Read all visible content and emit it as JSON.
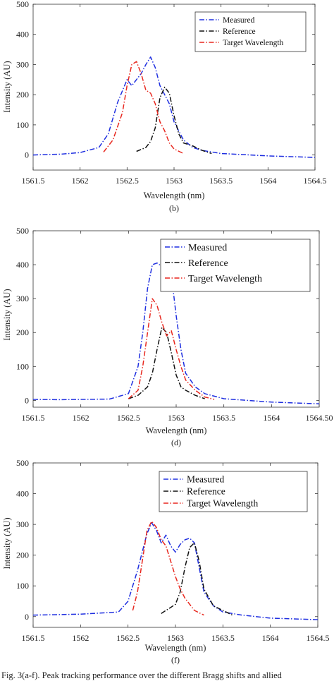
{
  "caption": "Fig. 3(a-f). Peak tracking performance over the different Bragg shifts and allied",
  "colors": {
    "measured": "#1f2fe0",
    "reference": "#111111",
    "target": "#e8271e"
  },
  "chart_data": [
    {
      "type": "line",
      "panel_label": "(b)",
      "xlabel": "Wavelength (nm)",
      "ylabel": "Intensity (AU)",
      "xlim": [
        1561.5,
        1564.5
      ],
      "ylim": [
        -50,
        500
      ],
      "x_ticks": [
        1561.5,
        1562,
        1562.5,
        1563,
        1563.5,
        1564,
        1564.5
      ],
      "x_tick_labels": [
        "1561.5",
        "1562",
        "1562.5",
        "1563",
        "1563.5",
        "1564",
        "1564.5"
      ],
      "y_ticks": [
        0,
        100,
        200,
        300,
        400,
        500
      ],
      "y_tick_labels": [
        "0",
        "100",
        "200",
        "300",
        "400",
        "500"
      ],
      "legend_position": "top-right",
      "series": [
        {
          "name": "Measured",
          "color": "#1f2fe0",
          "x": [
            1561.5,
            1561.8,
            1562.0,
            1562.2,
            1562.3,
            1562.4,
            1562.5,
            1562.55,
            1562.6,
            1562.65,
            1562.7,
            1562.75,
            1562.8,
            1562.85,
            1562.9,
            1562.95,
            1563.0,
            1563.1,
            1563.2,
            1563.3,
            1563.5,
            1564.0,
            1564.5
          ],
          "y": [
            0,
            3,
            8,
            25,
            70,
            175,
            250,
            230,
            250,
            270,
            300,
            325,
            290,
            230,
            200,
            170,
            110,
            50,
            25,
            15,
            5,
            -3,
            -8
          ]
        },
        {
          "name": "Reference",
          "color": "#111111",
          "x": [
            1562.6,
            1562.7,
            1562.75,
            1562.8,
            1562.85,
            1562.9,
            1562.95,
            1563.0,
            1563.05,
            1563.1,
            1563.2,
            1563.3,
            1563.4
          ],
          "y": [
            12,
            25,
            45,
            90,
            190,
            225,
            205,
            130,
            70,
            40,
            30,
            15,
            5
          ]
        },
        {
          "name": "Target Wavelength",
          "color": "#e8271e",
          "x": [
            1562.25,
            1562.35,
            1562.45,
            1562.5,
            1562.55,
            1562.6,
            1562.65,
            1562.7,
            1562.75,
            1562.8,
            1562.85,
            1562.9,
            1562.95,
            1563.0,
            1563.1
          ],
          "y": [
            10,
            50,
            140,
            230,
            300,
            310,
            270,
            215,
            205,
            170,
            110,
            80,
            40,
            20,
            5
          ]
        }
      ]
    },
    {
      "type": "line",
      "panel_label": "(d)",
      "xlabel": "Wavelength (nm)",
      "ylabel": "Intensity (AU)",
      "xlim": [
        1561.5,
        1564.5
      ],
      "ylim": [
        -20,
        500
      ],
      "x_ticks": [
        1561.5,
        1562,
        1562.5,
        1563,
        1563.5,
        1564,
        1564.5
      ],
      "x_tick_labels": [
        "1561.5",
        "1562",
        "1562.5",
        "1563",
        "1563.5",
        "1564",
        "1564.50"
      ],
      "y_ticks": [
        0,
        100,
        200,
        300,
        400,
        500
      ],
      "y_tick_labels": [
        "0",
        "100",
        "200",
        "300",
        "400",
        "500"
      ],
      "legend_position": "top-right",
      "series": [
        {
          "name": "Measured",
          "color": "#1f2fe0",
          "x": [
            1561.5,
            1561.8,
            1562.0,
            1562.3,
            1562.5,
            1562.6,
            1562.65,
            1562.7,
            1562.75,
            1562.8,
            1562.85,
            1562.9,
            1562.95,
            1563.0,
            1563.05,
            1563.1,
            1563.2,
            1563.3,
            1563.5,
            1564.0,
            1564.5
          ],
          "y": [
            3,
            2,
            3,
            4,
            20,
            100,
            200,
            330,
            400,
            405,
            395,
            400,
            370,
            250,
            150,
            80,
            40,
            20,
            5,
            -5,
            -10
          ]
        },
        {
          "name": "Reference",
          "color": "#111111",
          "x": [
            1562.5,
            1562.6,
            1562.7,
            1562.75,
            1562.8,
            1562.85,
            1562.9,
            1562.95,
            1563.0,
            1563.05,
            1563.1,
            1563.2,
            1563.3
          ],
          "y": [
            5,
            15,
            40,
            80,
            150,
            215,
            200,
            140,
            75,
            40,
            30,
            15,
            5
          ]
        },
        {
          "name": "Target Wavelength",
          "color": "#e8271e",
          "x": [
            1562.5,
            1562.6,
            1562.65,
            1562.7,
            1562.75,
            1562.8,
            1562.85,
            1562.9,
            1562.95,
            1563.0,
            1563.05,
            1563.1,
            1563.2,
            1563.3,
            1563.4
          ],
          "y": [
            5,
            30,
            100,
            200,
            300,
            280,
            230,
            190,
            205,
            150,
            100,
            60,
            30,
            10,
            3
          ]
        }
      ]
    },
    {
      "type": "line",
      "panel_label": "(f)",
      "xlabel": "Wavelength (nm)",
      "ylabel": "Intensity (AU)",
      "xlim": [
        1561.5,
        1564.5
      ],
      "ylim": [
        -35,
        500
      ],
      "x_ticks": [
        1561.5,
        1562,
        1562.5,
        1563,
        1563.5,
        1564,
        1564.5
      ],
      "x_tick_labels": [
        "1561.5",
        "1562",
        "1562.5",
        "1563",
        "1563.5",
        "1564",
        "1564.5"
      ],
      "y_ticks": [
        0,
        100,
        200,
        300,
        400,
        500
      ],
      "y_tick_labels": [
        "0",
        "100",
        "200",
        "300",
        "400",
        "500"
      ],
      "legend_position": "top-right",
      "series": [
        {
          "name": "Measured",
          "color": "#1f2fe0",
          "x": [
            1561.5,
            1562.0,
            1562.4,
            1562.5,
            1562.6,
            1562.7,
            1562.75,
            1562.8,
            1562.85,
            1562.9,
            1562.95,
            1563.0,
            1563.05,
            1563.1,
            1563.15,
            1563.2,
            1563.25,
            1563.3,
            1563.4,
            1563.5,
            1563.7,
            1564.0,
            1564.5
          ],
          "y": [
            5,
            8,
            15,
            50,
            150,
            270,
            305,
            280,
            240,
            265,
            230,
            210,
            235,
            250,
            255,
            240,
            160,
            80,
            35,
            15,
            5,
            -5,
            -10
          ]
        },
        {
          "name": "Reference",
          "color": "#111111",
          "x": [
            1562.85,
            1562.9,
            1562.95,
            1563.0,
            1563.05,
            1563.1,
            1563.15,
            1563.2,
            1563.25,
            1563.3,
            1563.4,
            1563.5,
            1563.6
          ],
          "y": [
            10,
            20,
            30,
            40,
            80,
            160,
            225,
            240,
            180,
            90,
            35,
            20,
            5
          ]
        },
        {
          "name": "Target Wavelength",
          "color": "#e8271e",
          "x": [
            1562.55,
            1562.6,
            1562.65,
            1562.7,
            1562.75,
            1562.8,
            1562.85,
            1562.9,
            1562.95,
            1563.0,
            1563.05,
            1563.1,
            1563.2,
            1563.3
          ],
          "y": [
            20,
            80,
            180,
            280,
            310,
            290,
            250,
            230,
            180,
            130,
            90,
            60,
            20,
            5
          ]
        }
      ]
    }
  ]
}
